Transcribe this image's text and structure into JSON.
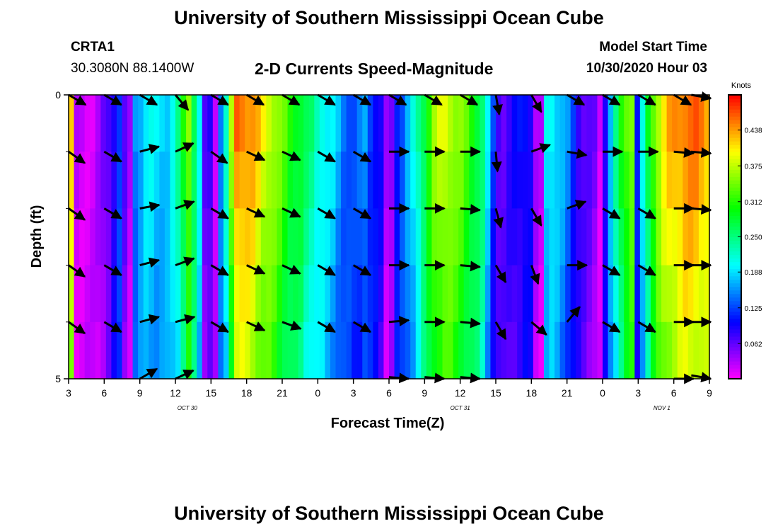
{
  "header": {
    "main_title": "University of Southern Mississippi Ocean Cube",
    "station_id": "CRTA1",
    "station_coords": "30.3080N 88.1400W",
    "product_title": "2-D Currents Speed-Magnitude",
    "model_start_label": "Model Start Time",
    "model_start_value": "10/30/2020 Hour 03"
  },
  "footer": {
    "repeat_title": "University of Southern Mississippi Ocean Cube"
  },
  "chart_data": {
    "type": "heatmap",
    "title": "2-D Currents Speed-Magnitude",
    "xlabel": "Forecast Time(Z)",
    "ylabel": "Depth (ft)",
    "colorbar_label": "Knots",
    "colorbar_ticks": [
      "0.438",
      "0.375",
      "0.312",
      "0.250",
      "0.188",
      "0.125",
      "0.062"
    ],
    "colorbar_tick_values": [
      0.438,
      0.375,
      0.312,
      0.25,
      0.188,
      0.125,
      0.062
    ],
    "color_range": [
      0,
      0.5
    ],
    "x_range_hours": [
      0,
      54
    ],
    "x_ticks": [
      "3",
      "6",
      "9",
      "12",
      "15",
      "18",
      "21",
      "0",
      "3",
      "6",
      "9",
      "12",
      "15",
      "18",
      "21",
      "0",
      "3",
      "6",
      "9"
    ],
    "x_tick_hours": [
      0,
      3,
      6,
      9,
      12,
      15,
      18,
      21,
      24,
      27,
      30,
      33,
      36,
      39,
      42,
      45,
      48,
      51,
      54
    ],
    "date_labels": [
      {
        "text": "OCT 30",
        "hour": 10
      },
      {
        "text": "OCT 31",
        "hour": 33
      },
      {
        "text": "NOV 1",
        "hour": 50
      }
    ],
    "y_ticks": [
      "0",
      "5"
    ],
    "y_range_ft": [
      0,
      5
    ],
    "depth_layers": 5,
    "column_speeds": [
      0.42,
      0.02,
      0.02,
      0.02,
      0.02,
      0.03,
      0.05,
      0.07,
      0.1,
      0.13,
      0.06,
      0.03,
      0.16,
      0.18,
      0.2,
      0.2,
      0.19,
      0.19,
      0.19,
      0.21,
      0.24,
      0.3,
      0.36,
      0.28,
      0.2,
      0.06,
      0.08,
      0.03,
      0.16,
      0.22,
      0.36,
      0.46,
      0.46,
      0.45,
      0.44,
      0.42,
      0.4,
      0.39,
      0.37,
      0.35,
      0.33,
      0.31,
      0.3,
      0.29,
      0.26,
      0.25,
      0.23,
      0.22,
      0.2,
      0.19,
      0.17,
      0.15,
      0.14,
      0.13,
      0.14,
      0.16,
      0.13,
      0.11,
      0.09,
      0.03,
      0.05,
      0.12,
      0.14,
      0.17,
      0.2,
      0.24,
      0.28,
      0.32,
      0.36,
      0.38,
      0.39,
      0.38,
      0.36,
      0.35,
      0.33,
      0.31,
      0.29,
      0.26,
      0.19,
      0.12,
      0.08,
      0.07,
      0.08,
      0.09,
      0.1,
      0.11,
      0.1,
      0.03,
      0.02,
      0.2,
      0.21,
      0.19,
      0.17,
      0.15,
      0.12,
      0.09,
      0.07,
      0.06,
      0.05,
      0.02,
      0.1,
      0.18,
      0.24,
      0.3,
      0.34,
      0.36,
      0.11,
      0.2,
      0.28,
      0.34,
      0.38,
      0.41,
      0.43,
      0.44,
      0.45,
      0.46,
      0.46,
      0.46,
      0.45,
      0.44
    ],
    "arrow_hours": [
      0,
      3,
      6,
      9,
      12,
      15,
      18,
      21,
      24,
      27,
      30,
      33,
      36,
      39,
      42,
      45,
      48,
      51,
      54
    ],
    "arrow_depths": [
      0,
      1,
      2,
      3,
      4,
      5
    ],
    "arrow_angles_deg": [
      [
        30,
        30,
        30,
        50,
        30,
        30,
        30,
        30,
        30,
        30,
        30,
        30,
        80,
        60,
        30,
        30,
        30,
        30,
        10
      ],
      [
        35,
        30,
        -15,
        -25,
        35,
        25,
        25,
        30,
        30,
        0,
        0,
        0,
        85,
        -20,
        10,
        0,
        0,
        5,
        5
      ],
      [
        35,
        30,
        -10,
        -20,
        30,
        25,
        25,
        30,
        30,
        0,
        0,
        5,
        75,
        60,
        -20,
        30,
        30,
        0,
        5
      ],
      [
        35,
        30,
        -15,
        -20,
        30,
        25,
        25,
        30,
        30,
        0,
        0,
        5,
        60,
        70,
        0,
        30,
        30,
        0,
        0
      ],
      [
        35,
        30,
        -15,
        -15,
        30,
        25,
        20,
        30,
        30,
        -5,
        0,
        5,
        60,
        40,
        -50,
        30,
        30,
        0,
        0
      ],
      [
        null,
        null,
        -30,
        -25,
        null,
        null,
        null,
        null,
        null,
        5,
        5,
        5,
        null,
        null,
        null,
        null,
        null,
        0,
        10
      ]
    ]
  }
}
